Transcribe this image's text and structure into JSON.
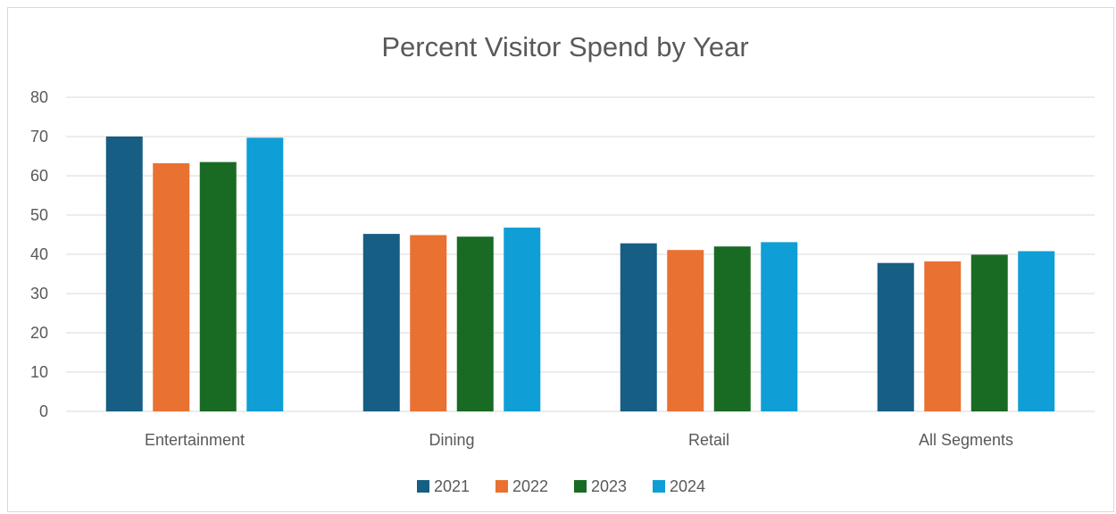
{
  "chart_data": {
    "type": "bar",
    "title": "Percent Visitor Spend by Year",
    "xlabel": "",
    "ylabel": "",
    "ylim": [
      0,
      80
    ],
    "yticks": [
      0,
      10,
      20,
      30,
      40,
      50,
      60,
      70,
      80
    ],
    "grid": true,
    "legend_position": "bottom",
    "categories": [
      "Entertainment",
      "Dining",
      "Retail",
      "All Segments"
    ],
    "series": [
      {
        "name": "2021",
        "color": "#165E83",
        "values": [
          70,
          45.2,
          42.8,
          37.8
        ]
      },
      {
        "name": "2022",
        "color": "#E97132",
        "values": [
          63.2,
          44.9,
          41.1,
          38.2
        ]
      },
      {
        "name": "2023",
        "color": "#196B24",
        "values": [
          63.5,
          44.5,
          42,
          39.9
        ]
      },
      {
        "name": "2024",
        "color": "#0F9ED5",
        "values": [
          69.7,
          46.8,
          43.1,
          40.8
        ]
      }
    ]
  }
}
